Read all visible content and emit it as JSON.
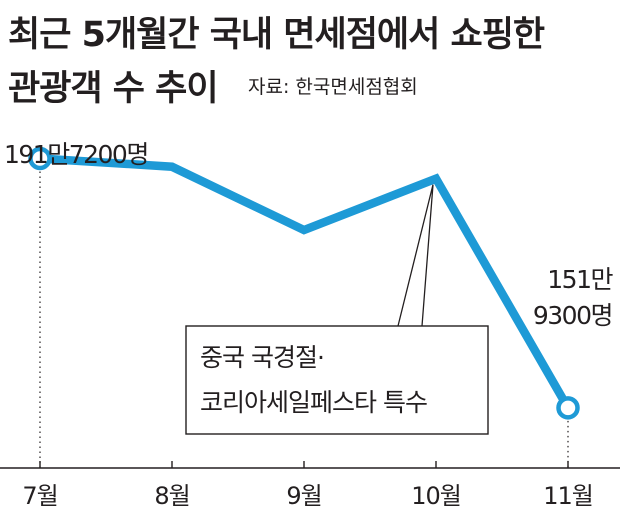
{
  "header": {
    "title_line1": "최근 5개월간 국내 면세점에서 쇼핑한",
    "title_line2": "관광객 수 추이",
    "source": "자료: 한국면세점협회"
  },
  "colors": {
    "line": "#1e9ad6",
    "text": "#231f20",
    "axis": "#231f20",
    "marker_fill": "#ffffff"
  },
  "chart_data": {
    "type": "line",
    "title": "최근 5개월간 국내 면세점에서 쇼핑한 관광객 수 추이",
    "categories": [
      "7월",
      "8월",
      "9월",
      "10월",
      "11월"
    ],
    "values": [
      1917200,
      1904000,
      1803000,
      1885000,
      1519300
    ],
    "unit": "명",
    "data_labels": [
      {
        "index": 0,
        "lines": [
          "191만7200명"
        ]
      },
      {
        "index": 4,
        "lines": [
          "151만",
          "9300명"
        ]
      }
    ],
    "annotation": {
      "index": 3,
      "lines": [
        "중국 국경절·",
        "코리아세일페스타 특수"
      ]
    },
    "ylim": [
      1450000,
      1950000
    ],
    "grid": false,
    "legend": "none",
    "source": "자료: 한국면세점협회"
  }
}
